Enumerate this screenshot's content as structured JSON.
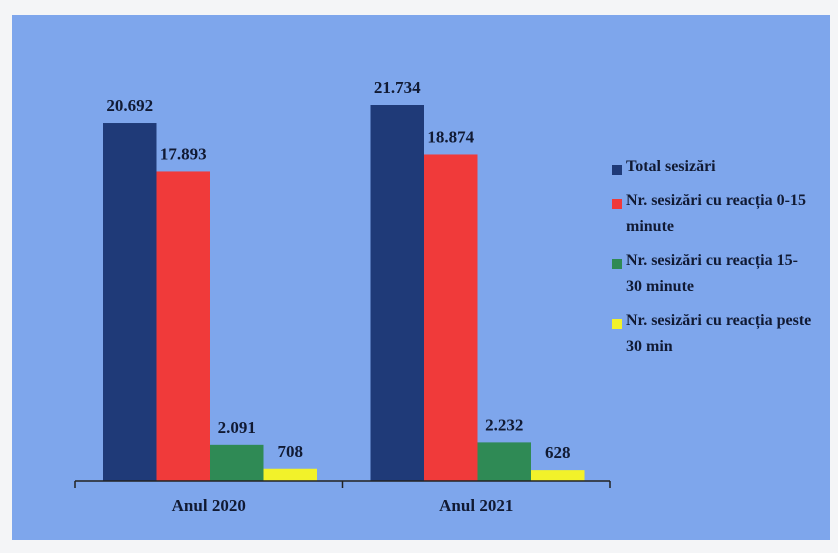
{
  "chart_data": {
    "type": "bar",
    "categories": [
      "Anul 2020",
      "Anul 2021"
    ],
    "series": [
      {
        "name": "Total sesizări",
        "color": "#1f3a78",
        "values": [
          20692,
          21734
        ],
        "value_labels": [
          "20.692",
          "21.734"
        ]
      },
      {
        "name": "Nr. sesizări cu reacția 0-15 minute",
        "color": "#f03a3a",
        "values": [
          17893,
          18874
        ],
        "value_labels": [
          "17.893",
          "18.874"
        ]
      },
      {
        "name": "Nr. sesizări cu reacția 15-30 minute",
        "color": "#2f8a55",
        "values": [
          2091,
          2232
        ],
        "value_labels": [
          "2.091",
          "2.232"
        ]
      },
      {
        "name": "Nr. sesizări cu reacția peste 30 min",
        "color": "#f2f22a",
        "values": [
          708,
          628
        ],
        "value_labels": [
          "708",
          "628"
        ]
      }
    ],
    "legend": "right"
  }
}
